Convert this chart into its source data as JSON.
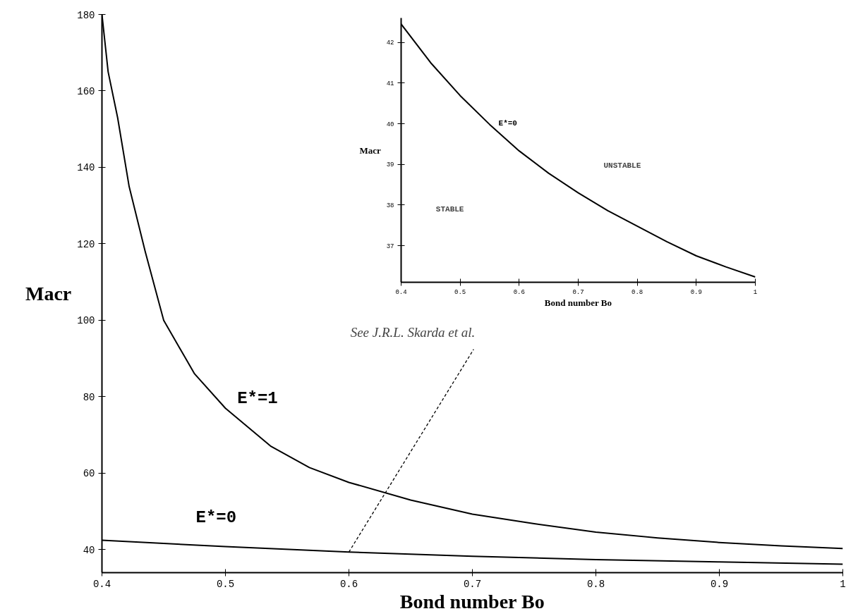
{
  "chart_data": [
    {
      "type": "line",
      "xlabel": "Bond number Bo",
      "ylabel": "Macr",
      "xlim": [
        0.4,
        1.0
      ],
      "ylim": [
        34,
        180
      ],
      "xticks": [
        0.4,
        0.5,
        0.6,
        0.7,
        0.8,
        0.9,
        1
      ],
      "yticks": [
        40,
        60,
        80,
        100,
        120,
        140,
        160,
        180
      ],
      "series": [
        {
          "name": "E*=1",
          "color": "#000000",
          "x": [
            0.4,
            0.405,
            0.4127,
            0.422,
            0.435,
            0.45,
            0.475,
            0.5,
            0.537,
            0.568,
            0.6,
            0.65,
            0.7,
            0.75,
            0.8,
            0.85,
            0.9,
            0.95,
            1.0
          ],
          "values": [
            180,
            165,
            153,
            135,
            118,
            100,
            86,
            77,
            67,
            61.5,
            57.6,
            53,
            49.3,
            46.8,
            44.6,
            43.1,
            41.9,
            41,
            40.3
          ]
        },
        {
          "name": "E*=0",
          "color": "#000000",
          "x": [
            0.4,
            0.5,
            0.6,
            0.7,
            0.8,
            0.9,
            1.0
          ],
          "values": [
            42.5,
            40.8,
            39.4,
            38.3,
            37.4,
            36.8,
            36.2
          ]
        }
      ],
      "annotations": [
        {
          "text": "See J.R.L. Skarda et al.",
          "x": 0.6,
          "y": 39.4
        }
      ]
    },
    {
      "type": "line",
      "xlabel": "Bond number Bo",
      "ylabel": "Macr",
      "xlim": [
        0.4,
        1.0
      ],
      "ylim": [
        36.1,
        42.6
      ],
      "xticks": [
        0.4,
        0.5,
        0.6,
        0.7,
        0.8,
        0.9,
        1
      ],
      "yticks": [
        37,
        38,
        39,
        40,
        41,
        42
      ],
      "series": [
        {
          "name": "E*=0",
          "color": "#000000",
          "x": [
            0.4,
            0.45,
            0.5,
            0.55,
            0.6,
            0.65,
            0.7,
            0.75,
            0.8,
            0.85,
            0.9,
            0.95,
            1.0
          ],
          "values": [
            42.45,
            41.5,
            40.69,
            39.98,
            39.33,
            38.78,
            38.3,
            37.86,
            37.48,
            37.1,
            36.75,
            36.48,
            36.23
          ]
        }
      ],
      "annotations": [
        "STABLE",
        "UNSTABLE"
      ]
    }
  ]
}
